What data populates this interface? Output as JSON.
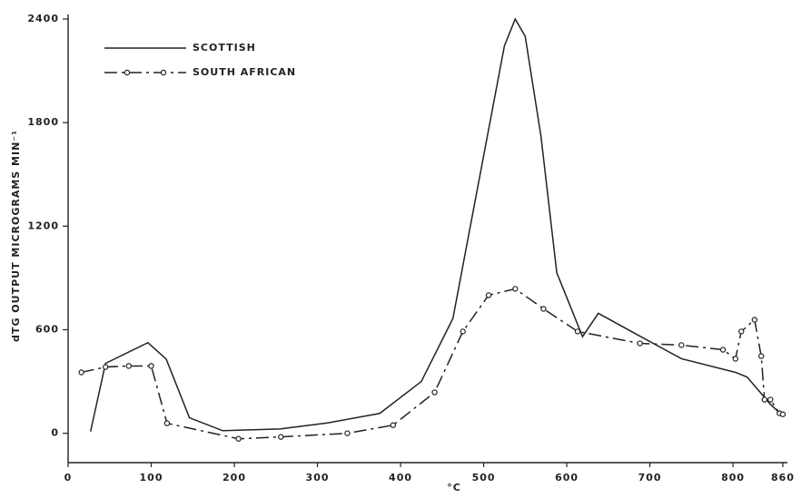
{
  "chart_data": {
    "type": "line",
    "y_label": "dTG OUTPUT MICROGRAMS MIN⁻¹",
    "x_label": "°C",
    "xlim": [
      0,
      860
    ],
    "ylim": [
      -170,
      2400
    ],
    "xticks": [
      0,
      100,
      200,
      300,
      400,
      500,
      600,
      700,
      800,
      860
    ],
    "yticks": [
      0,
      600,
      1200,
      1800,
      2400
    ],
    "legend": "upper left",
    "series": [
      {
        "name": "SCOTTISH",
        "color": "#222222",
        "style": "solid",
        "markers": false,
        "x": [
          27,
          45,
          96,
          118,
          146,
          186,
          255,
          312,
          375,
          425,
          463,
          494,
          525,
          538,
          550,
          569,
          588,
          619,
          638,
          688,
          738,
          803,
          817,
          831,
          845,
          859
        ],
        "values": [
          10,
          405,
          525,
          430,
          90,
          15,
          25,
          60,
          115,
          300,
          665,
          1455,
          2245,
          2400,
          2300,
          1720,
          930,
          560,
          695,
          563,
          432,
          353,
          326,
          247,
          168,
          105
        ]
      },
      {
        "name": "SOUTH AFRICAN",
        "color": "#222222",
        "style": "dashdot",
        "markers": true,
        "x": [
          16,
          45,
          73,
          100,
          119,
          205,
          256,
          336,
          391,
          441,
          475,
          506,
          538,
          572,
          613,
          688,
          738,
          788,
          803,
          810,
          826,
          834,
          838,
          845,
          856,
          860
        ],
        "values": [
          353,
          384,
          390,
          390,
          58,
          -32,
          -21,
          0,
          47,
          237,
          590,
          800,
          837,
          721,
          590,
          521,
          511,
          484,
          432,
          590,
          658,
          447,
          195,
          195,
          116,
          110
        ]
      }
    ]
  }
}
